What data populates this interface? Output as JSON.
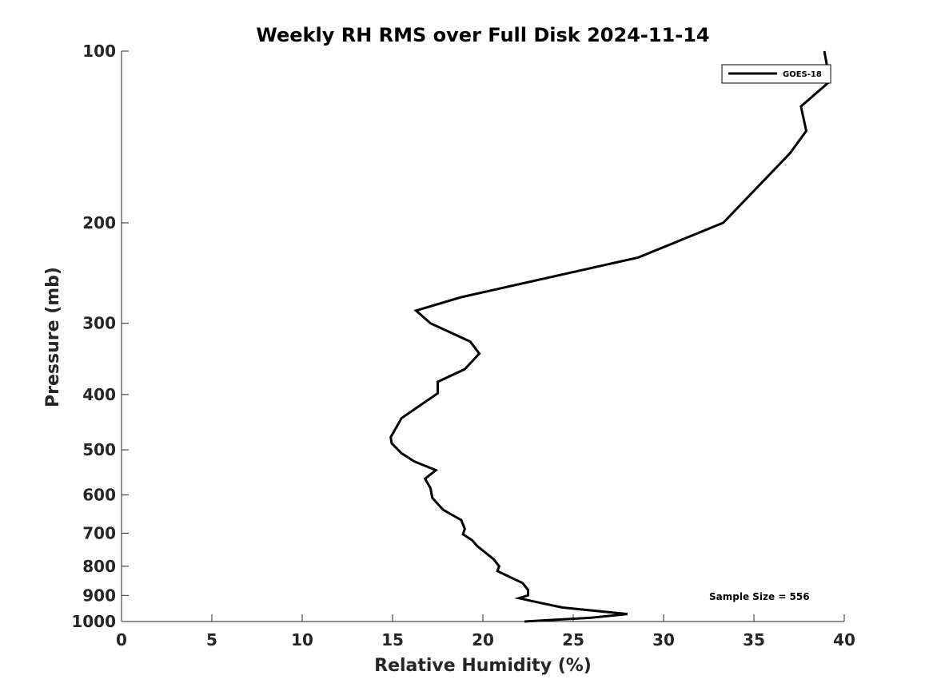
{
  "chart_data": {
    "type": "line",
    "title": "Weekly RH RMS over Full Disk 2024-11-14",
    "xlabel": "Relative Humidity (%)",
    "ylabel": "Pressure (mb)",
    "xlim": [
      0,
      40
    ],
    "ylim": [
      100,
      1000
    ],
    "yscale": "log",
    "yreverse": false,
    "xticks": [
      0,
      5,
      10,
      15,
      20,
      25,
      30,
      35,
      40
    ],
    "xtick_labels": [
      "0",
      "5",
      "10",
      "15",
      "20",
      "25",
      "30",
      "35",
      "40"
    ],
    "yticks": [
      100,
      200,
      300,
      400,
      500,
      600,
      700,
      800,
      900,
      1000
    ],
    "ytick_labels": [
      "100",
      "200",
      "300",
      "400",
      "500",
      "600",
      "700",
      "800",
      "900",
      "1000"
    ],
    "legend_position": "top-right",
    "annotation": "Sample Size = 556",
    "series": [
      {
        "name": "GOES-18",
        "color": "#000000",
        "x": [
          38.9,
          39.2,
          37.6,
          37.9,
          37.0,
          33.3,
          28.6,
          18.8,
          16.3,
          17.1,
          19.3,
          19.8,
          19.0,
          17.5,
          17.5,
          15.5,
          14.9,
          14.95,
          15.5,
          16.2,
          17.4,
          16.8,
          17.1,
          17.2,
          17.8,
          18.8,
          19.0,
          18.9,
          19.4,
          19.7,
          20.6,
          20.9,
          20.8,
          22.2,
          22.5,
          22.5,
          22.0,
          23.0,
          24.4,
          28.0,
          26.0,
          22.3
        ],
        "y": [
          100,
          113,
          125,
          138,
          151,
          200,
          230,
          270,
          285,
          300,
          323,
          339,
          361,
          380,
          398,
          440,
          475,
          487,
          507,
          524,
          543,
          562,
          584,
          607,
          637,
          664,
          688,
          703,
          720,
          738,
          778,
          800,
          816,
          856,
          880,
          900,
          910,
          925,
          945,
          970,
          985,
          1000
        ]
      }
    ]
  }
}
